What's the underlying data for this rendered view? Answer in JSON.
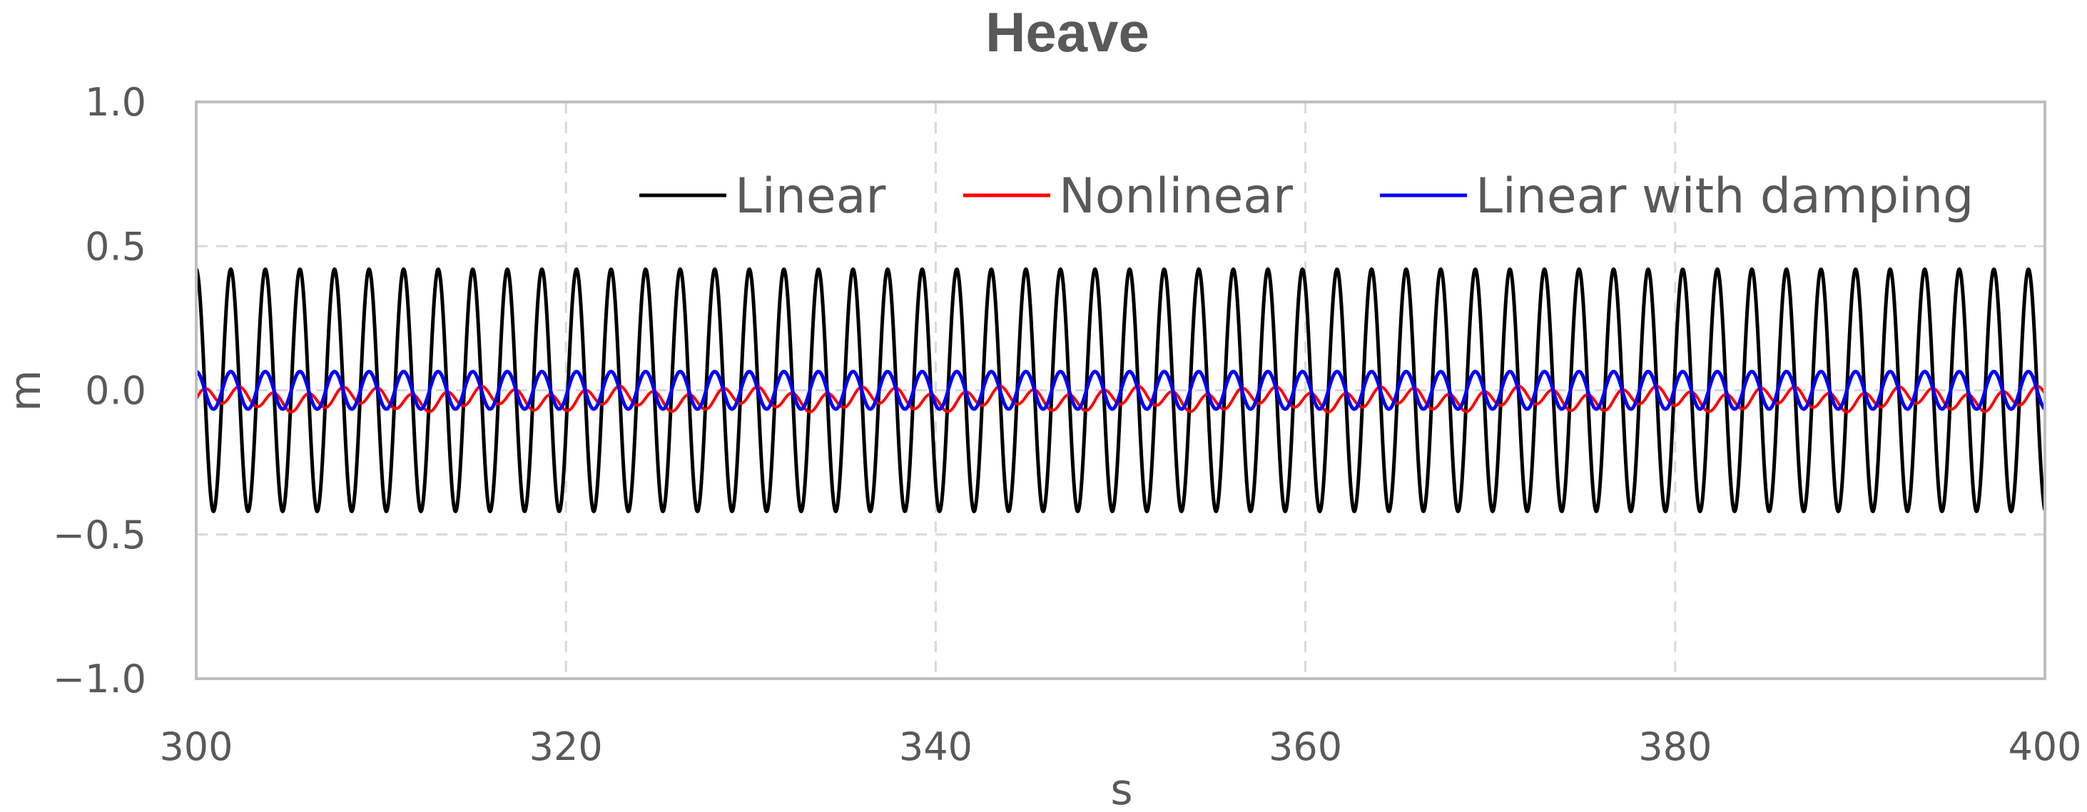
{
  "chart_data": {
    "type": "line",
    "title": "Heave",
    "xlabel": "s",
    "ylabel": "m",
    "xlim": [
      300,
      400
    ],
    "ylim": [
      -1.0,
      1.0
    ],
    "x_ticks": [
      300,
      320,
      340,
      360,
      380,
      400
    ],
    "y_ticks": [
      -1.0,
      -0.5,
      0.0,
      0.5,
      1.0
    ],
    "x_tick_labels": [
      "300",
      "320",
      "340",
      "360",
      "380",
      "400"
    ],
    "y_tick_labels": [
      "−1.0",
      "−0.5",
      "0.0",
      "0.5",
      "1.0"
    ],
    "grid": true,
    "legend_position": "top-right",
    "series": [
      {
        "name": "Linear",
        "color": "#000000",
        "description_of_signal": "sinusoid",
        "amplitude": 0.42,
        "period": 1.87,
        "phase_at_x0": 1.5708,
        "offset": 0.0
      },
      {
        "name": "Nonlinear",
        "color": "#ff0000",
        "amplitude": 0.03,
        "period": 1.87,
        "phase_at_x0": 0.0,
        "offset": -0.03,
        "slow_amplitude": 0.015,
        "slow_period": 7.0
      },
      {
        "name": "Linear with damping",
        "color": "#0000ff",
        "amplitude": 0.065,
        "period": 1.87,
        "phase_at_x0": 1.5708,
        "offset": 0.0
      }
    ]
  }
}
